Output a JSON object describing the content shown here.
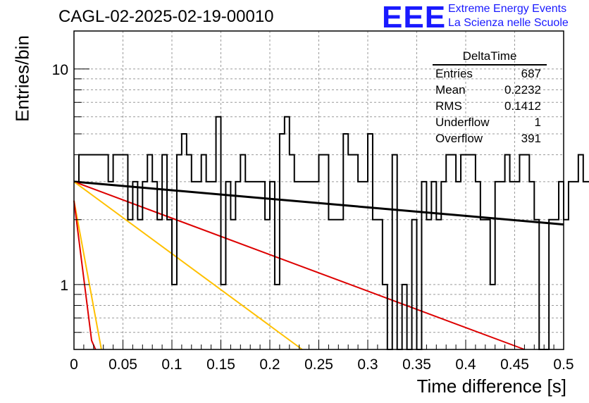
{
  "title": "CAGL-02-2025-02-19-00010",
  "logo": {
    "mark": "EEE",
    "line1": "Extreme Energy Events",
    "line2": "La Scienza nelle Scuole",
    "color": "#1a1aff"
  },
  "stats_box": {
    "title": "DeltaTime",
    "rows": [
      {
        "key": "Entries",
        "value": "687"
      },
      {
        "key": "Mean",
        "value": "0.2232"
      },
      {
        "key": "RMS",
        "value": "0.1412"
      },
      {
        "key": "Underflow",
        "value": "1"
      },
      {
        "key": "Overflow",
        "value": "391"
      }
    ]
  },
  "chart_data": {
    "type": "histogram",
    "xlabel": "Time difference [s]",
    "ylabel": "Entries/bin",
    "xlim": [
      0,
      0.5
    ],
    "ylim": [
      0.5,
      15
    ],
    "yscale": "log",
    "grid": true,
    "x_ticks": [
      "0",
      "0.05",
      "0.1",
      "0.15",
      "0.2",
      "0.25",
      "0.3",
      "0.35",
      "0.4",
      "0.45",
      "0.5"
    ],
    "y_ticks": [
      "1",
      "10"
    ],
    "bin_width": 0.005,
    "histogram_counts": [
      3,
      4,
      4,
      4,
      4,
      4,
      4,
      3,
      4,
      4,
      4,
      2,
      3,
      2,
      3,
      4,
      3,
      2,
      4,
      2,
      1,
      4,
      5,
      4,
      3,
      3,
      4,
      3,
      3,
      6,
      1,
      3,
      2,
      3,
      4,
      3,
      3,
      3,
      3,
      2,
      3,
      1,
      5,
      6,
      4,
      3,
      3,
      3,
      3,
      3,
      4,
      4,
      2,
      2,
      2,
      5,
      4,
      4,
      3,
      3,
      5,
      2,
      2,
      1,
      0,
      4,
      0,
      1,
      0,
      2,
      0,
      3,
      2,
      3,
      2,
      3,
      4,
      4,
      3,
      4,
      4,
      4,
      3,
      2,
      2,
      1,
      3,
      3,
      4,
      3,
      3,
      4,
      4,
      3,
      2,
      0,
      0,
      2,
      2,
      3,
      2,
      3,
      3,
      4,
      3,
      3,
      3,
      2,
      2,
      3,
      2,
      0,
      0,
      3,
      3,
      3,
      2,
      3,
      2,
      2,
      1,
      3,
      2,
      2,
      2,
      3,
      2,
      3,
      2,
      3,
      3,
      3,
      3,
      2,
      2,
      4,
      1,
      2,
      4,
      2,
      1,
      3,
      0,
      3,
      3,
      3,
      1,
      2,
      2,
      4,
      0,
      2,
      3,
      2,
      3,
      2,
      1,
      2,
      3,
      2,
      0,
      1,
      3,
      3,
      2,
      3,
      3,
      2,
      3,
      3,
      2,
      3,
      3,
      1,
      0,
      3,
      0,
      1,
      3,
      1,
      1,
      3,
      3,
      3,
      2,
      2,
      3,
      3,
      2,
      3,
      3,
      3,
      2,
      2,
      2,
      3,
      3,
      3,
      1,
      3,
      2,
      3,
      3,
      3,
      2,
      1
    ],
    "fit_lines": [
      {
        "color": "#000000",
        "points": [
          [
            0.0,
            3.0
          ],
          [
            0.5,
            1.9
          ]
        ]
      },
      {
        "color": "#dd0000",
        "points": [
          [
            0.0,
            3.0
          ],
          [
            0.46,
            0.5
          ]
        ]
      },
      {
        "color": "#ffc000",
        "points": [
          [
            0.0,
            3.0
          ],
          [
            0.233,
            0.5
          ]
        ]
      },
      {
        "color": "#ffc000",
        "points": [
          [
            0.0,
            2.45
          ],
          [
            0.028,
            0.5
          ]
        ]
      },
      {
        "color": "#dd0000",
        "points": [
          [
            0.0,
            2.45
          ],
          [
            0.018,
            0.55
          ],
          [
            0.022,
            0.5
          ]
        ]
      }
    ]
  }
}
